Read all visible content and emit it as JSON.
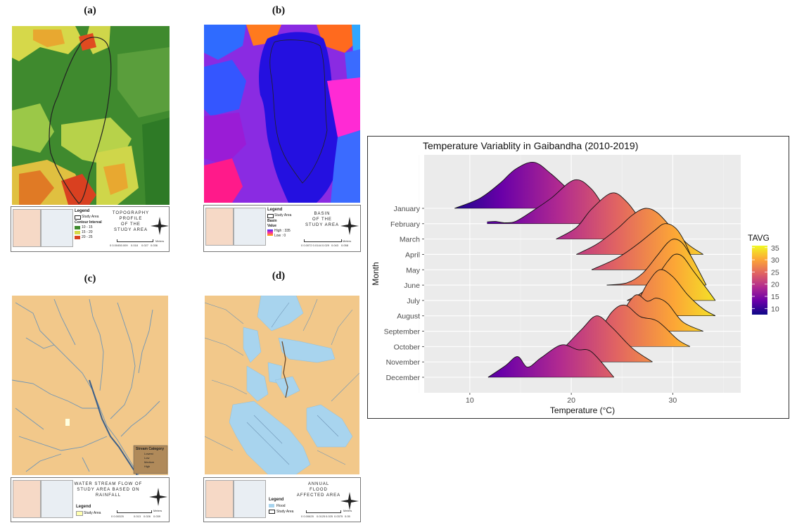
{
  "panels": [
    {
      "id": "a",
      "label": "(a)",
      "legend": {
        "title": "Legend",
        "items": [
          "Study Area",
          "Contour Interval",
          "10 - 15",
          "15 - 20",
          "20 - 25"
        ]
      },
      "map_title": [
        "TOPOGRAPHY",
        "PROFILE",
        "OF THE",
        "STUDY AREA"
      ],
      "scale": [
        "0 0.00450.009",
        "0.018",
        "0.027",
        "0.036"
      ],
      "scale_unit": "Meters"
    },
    {
      "id": "b",
      "label": "(b)",
      "legend": {
        "title": "Legend",
        "items": [
          "Study Area",
          "Basin",
          "Value",
          "High : 335",
          "Low : 0"
        ]
      },
      "map_title": [
        "BASIN",
        "OF THE",
        "STUDY AREA"
      ],
      "scale": [
        "0 0.0072 0.0144",
        "0.029",
        "0.043",
        "0.058"
      ],
      "scale_unit": "Meters"
    },
    {
      "id": "c",
      "label": "(c)",
      "legend": {
        "title": "Legend",
        "items": [
          "Study Area"
        ]
      },
      "stream_legend": {
        "title": "Stream Category",
        "items": [
          "Lowest",
          "Low",
          "Medium",
          "High"
        ]
      },
      "map_title": [
        "WATER STREAM FLOW OF",
        "STUDY AREA BASED ON",
        "RAINFALL"
      ],
      "scale": [
        "0 0.00325",
        "0.013",
        "0.026",
        "0.039"
      ],
      "scale_unit": "Meters"
    },
    {
      "id": "d",
      "label": "(d)",
      "legend": {
        "title": "Legend",
        "items": [
          "Flood",
          "Study Area"
        ]
      },
      "map_title": [
        "ANNUAL",
        "FLOOD",
        "AFFECTED AREA"
      ],
      "scale": [
        "0 0.00625",
        "0.0125",
        "0.025",
        "0.0375",
        "0.05"
      ],
      "scale_unit": "Meters"
    }
  ],
  "colors": {
    "flood": "#a8d4ee",
    "land": "#f2c88a",
    "stream": "#6f95b6"
  },
  "chart_data": {
    "type": "ridgeline",
    "title": "Temperature Variablity in Gaibandha (2010-2019)",
    "xlabel": "Temperature (°C)",
    "ylabel": "Month",
    "x_ticks": [
      10,
      20,
      30
    ],
    "xlim": [
      5.5,
      36.7
    ],
    "categories": [
      "January",
      "February",
      "March",
      "April",
      "May",
      "June",
      "July",
      "August",
      "September",
      "October",
      "November",
      "December"
    ],
    "series": [
      {
        "name": "January",
        "x": [
          8.5,
          11,
          13,
          14.5,
          16.3,
          18,
          20.5,
          22
        ],
        "density": [
          0,
          0.22,
          0.55,
          0.85,
          1.0,
          0.75,
          0.25,
          0
        ]
      },
      {
        "name": "February",
        "x": [
          11.7,
          12.5,
          12.8,
          13.5,
          14.5,
          16,
          18,
          20.3,
          22,
          23.5,
          24
        ],
        "density": [
          0.04,
          0.05,
          0.04,
          0.02,
          0.05,
          0.25,
          0.55,
          0.95,
          0.75,
          0.25,
          0.02
        ]
      },
      {
        "name": "March",
        "x": [
          18.5,
          20.5,
          22,
          24,
          25.5,
          27,
          28
        ],
        "density": [
          0,
          0.25,
          0.65,
          1.0,
          0.8,
          0.35,
          0
        ]
      },
      {
        "name": "April",
        "x": [
          20.5,
          22.5,
          24.5,
          26,
          27.3,
          28.5,
          30,
          31.5,
          33
        ],
        "density": [
          0,
          0.22,
          0.55,
          0.85,
          1.0,
          0.9,
          0.55,
          0.22,
          0
        ]
      },
      {
        "name": "May",
        "x": [
          22,
          24.5,
          26.5,
          28.2,
          29.2,
          30.3,
          31.3,
          32.3
        ],
        "density": [
          0,
          0.25,
          0.55,
          0.85,
          1.0,
          0.9,
          0.55,
          0
        ]
      },
      {
        "name": "June",
        "x": [
          23.5,
          25.5,
          27,
          28.5,
          29.5,
          30.2,
          31,
          32,
          33.3
        ],
        "density": [
          0,
          0.05,
          0.25,
          0.65,
          0.92,
          1.0,
          0.9,
          0.55,
          0
        ]
      },
      {
        "name": "July",
        "x": [
          25.5,
          27,
          28.5,
          29.5,
          30.2,
          31,
          32,
          33.2,
          34.2
        ],
        "density": [
          0,
          0.18,
          0.55,
          0.85,
          1.0,
          0.95,
          0.65,
          0.3,
          0
        ]
      },
      {
        "name": "August",
        "x": [
          24.5,
          25.5,
          26.5,
          27.5,
          28.7,
          30,
          31.5,
          33,
          34.2
        ],
        "density": [
          0.02,
          0.08,
          0.3,
          0.7,
          1.0,
          0.85,
          0.45,
          0.15,
          0
        ]
      },
      {
        "name": "September",
        "x": [
          23.5,
          24.7,
          26.3,
          27.5,
          28.4,
          29.5,
          31,
          33
        ],
        "density": [
          0,
          0.3,
          0.78,
          0.65,
          0.72,
          0.6,
          0.2,
          0
        ]
      },
      {
        "name": "October",
        "x": [
          21,
          22.5,
          24,
          25.3,
          26.8,
          28.5,
          30.5,
          31.7
        ],
        "density": [
          0,
          0.25,
          0.75,
          0.9,
          0.65,
          0.55,
          0.15,
          0
        ]
      },
      {
        "name": "November",
        "x": [
          17.5,
          19,
          21,
          22.5,
          24,
          26,
          28
        ],
        "density": [
          0,
          0.25,
          0.7,
          1.0,
          0.75,
          0.3,
          0
        ]
      },
      {
        "name": "December",
        "x": [
          11.8,
          13.5,
          14.7,
          15.7,
          17,
          19,
          20.6,
          22,
          24.2
        ],
        "density": [
          0,
          0.25,
          0.45,
          0.22,
          0.42,
          0.7,
          0.6,
          0.55,
          0
        ]
      }
    ],
    "legend": {
      "title": "TAVG",
      "ticks": [
        10,
        15,
        20,
        25,
        30,
        35
      ],
      "range": [
        7.5,
        35.8
      ],
      "colors": [
        "#0d0887",
        "#6a00a8",
        "#b12a90",
        "#e16462",
        "#fca636",
        "#f0f921"
      ]
    },
    "ridge_scale": 3.0
  }
}
